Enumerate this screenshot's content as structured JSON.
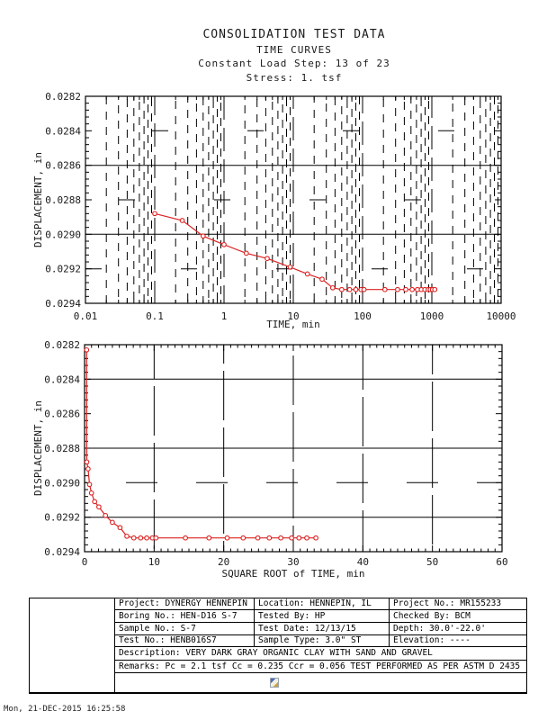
{
  "header": {
    "line1": "CONSOLIDATION TEST DATA",
    "line2": "TIME CURVES",
    "line3": "Constant Load Step: 13 of 23",
    "line4": "Stress: 1. tsf"
  },
  "colors": {
    "curve": "#dd2222",
    "axis": "#000000"
  },
  "chart_data": [
    {
      "id": "log-time",
      "type": "line",
      "title": "",
      "xlabel": "TIME, min",
      "ylabel": "DISPLACEMENT, in",
      "x_scale": "log",
      "xlim": [
        0.01,
        10000
      ],
      "y_top": 0.0282,
      "y_bottom": 0.0294,
      "x_ticks": [
        "0.01",
        "0.1",
        "1",
        "10",
        "100",
        "1000",
        "10000"
      ],
      "x_tick_values": [
        0.01,
        0.1,
        1,
        10,
        100,
        1000,
        10000
      ],
      "y_ticks": [
        "0.0282",
        "0.0284",
        "0.0286",
        "0.0288",
        "0.0290",
        "0.0292",
        "0.0294"
      ],
      "y_tick_values": [
        0.0282,
        0.0284,
        0.0286,
        0.0288,
        0.029,
        0.0292,
        0.0294
      ],
      "grid": "dashed",
      "legend": "none",
      "series": [
        {
          "name": "displacement-vs-log-time",
          "color": "#dd2222",
          "marker": "open-circle",
          "points": [
            [
              0.1,
              0.02888
            ],
            [
              0.25,
              0.02892
            ],
            [
              0.5,
              0.02901
            ],
            [
              1,
              0.02906
            ],
            [
              2.1,
              0.02911
            ],
            [
              4.2,
              0.02914
            ],
            [
              9,
              0.02919
            ],
            [
              16,
              0.02923
            ],
            [
              26,
              0.02926
            ],
            [
              37,
              0.02931
            ],
            [
              50,
              0.02932
            ],
            [
              65,
              0.02932
            ],
            [
              80,
              0.02932
            ],
            [
              95,
              0.02932
            ],
            [
              105,
              0.02932
            ],
            [
              210,
              0.02932
            ],
            [
              320,
              0.02932
            ],
            [
              420,
              0.02932
            ],
            [
              520,
              0.02932
            ],
            [
              620,
              0.02932
            ],
            [
              705,
              0.02932
            ],
            [
              795,
              0.02932
            ],
            [
              885,
              0.02932
            ],
            [
              950,
              0.02932
            ],
            [
              1020,
              0.02932
            ],
            [
              1105,
              0.02932
            ]
          ]
        }
      ]
    },
    {
      "id": "sqrt-time",
      "type": "line",
      "title": "",
      "xlabel": "SQUARE ROOT of TIME, min",
      "ylabel": "DISPLACEMENT, in",
      "x_scale": "linear",
      "xlim": [
        0,
        60
      ],
      "y_top": 0.0282,
      "y_bottom": 0.0294,
      "x_ticks": [
        "0",
        "10",
        "20",
        "30",
        "40",
        "50",
        "60"
      ],
      "x_tick_values": [
        0,
        10,
        20,
        30,
        40,
        50,
        60
      ],
      "y_ticks": [
        "0.0282",
        "0.0284",
        "0.0286",
        "0.0288",
        "0.0290",
        "0.0292",
        "0.0294"
      ],
      "y_tick_values": [
        0.0282,
        0.0284,
        0.0286,
        0.0288,
        0.029,
        0.0292,
        0.0294
      ],
      "grid": "dashed",
      "legend": "none",
      "series": [
        {
          "name": "displacement-vs-sqrt-time",
          "color": "#dd2222",
          "marker": "open-circle",
          "points": [
            [
              0.3,
              0.02823
            ],
            [
              0.32,
              0.02888
            ],
            [
              0.5,
              0.02892
            ],
            [
              0.71,
              0.02901
            ],
            [
              1,
              0.02906
            ],
            [
              1.45,
              0.02911
            ],
            [
              2.05,
              0.02914
            ],
            [
              3,
              0.02919
            ],
            [
              4,
              0.02923
            ],
            [
              5.1,
              0.02926
            ],
            [
              6.08,
              0.02931
            ],
            [
              7.07,
              0.02932
            ],
            [
              8.06,
              0.02932
            ],
            [
              8.94,
              0.02932
            ],
            [
              9.75,
              0.02932
            ],
            [
              10.25,
              0.02932
            ],
            [
              14.49,
              0.02932
            ],
            [
              17.89,
              0.02932
            ],
            [
              20.49,
              0.02932
            ],
            [
              22.8,
              0.02932
            ],
            [
              24.9,
              0.02932
            ],
            [
              26.55,
              0.02932
            ],
            [
              28.2,
              0.02932
            ],
            [
              29.75,
              0.02932
            ],
            [
              30.82,
              0.02932
            ],
            [
              31.94,
              0.02932
            ],
            [
              33.24,
              0.02932
            ]
          ]
        }
      ]
    }
  ],
  "info_table": {
    "rows": [
      [
        "Project: DYNERGY HENNEPIN",
        "Location: HENNEPIN, IL",
        "Project No.: MR155233"
      ],
      [
        "Boring No.: HEN-D16 S-7",
        "Tested By: HP",
        "Checked By: BCM"
      ],
      [
        "Sample No.: S-7",
        "Test Date: 12/13/15",
        "Depth: 30.0'-22.0'"
      ],
      [
        "Test No.: HENB016S7",
        "Sample Type: 3.0\" ST",
        "Elevation: ----"
      ]
    ],
    "description": "Description: VERY DARK GRAY ORGANIC CLAY WITH SAND AND GRAVEL",
    "remarks": "Remarks: Pc = 2.1 tsf Cc = 0.235 Ccr = 0.056 TEST PERFORMED AS PER ASTM D 2435"
  },
  "footer": {
    "timestamp": "Mon, 21-DEC-2015 16:25:58"
  },
  "icons": {
    "bottom_row_glyph": "tiny-logo-glyph"
  }
}
